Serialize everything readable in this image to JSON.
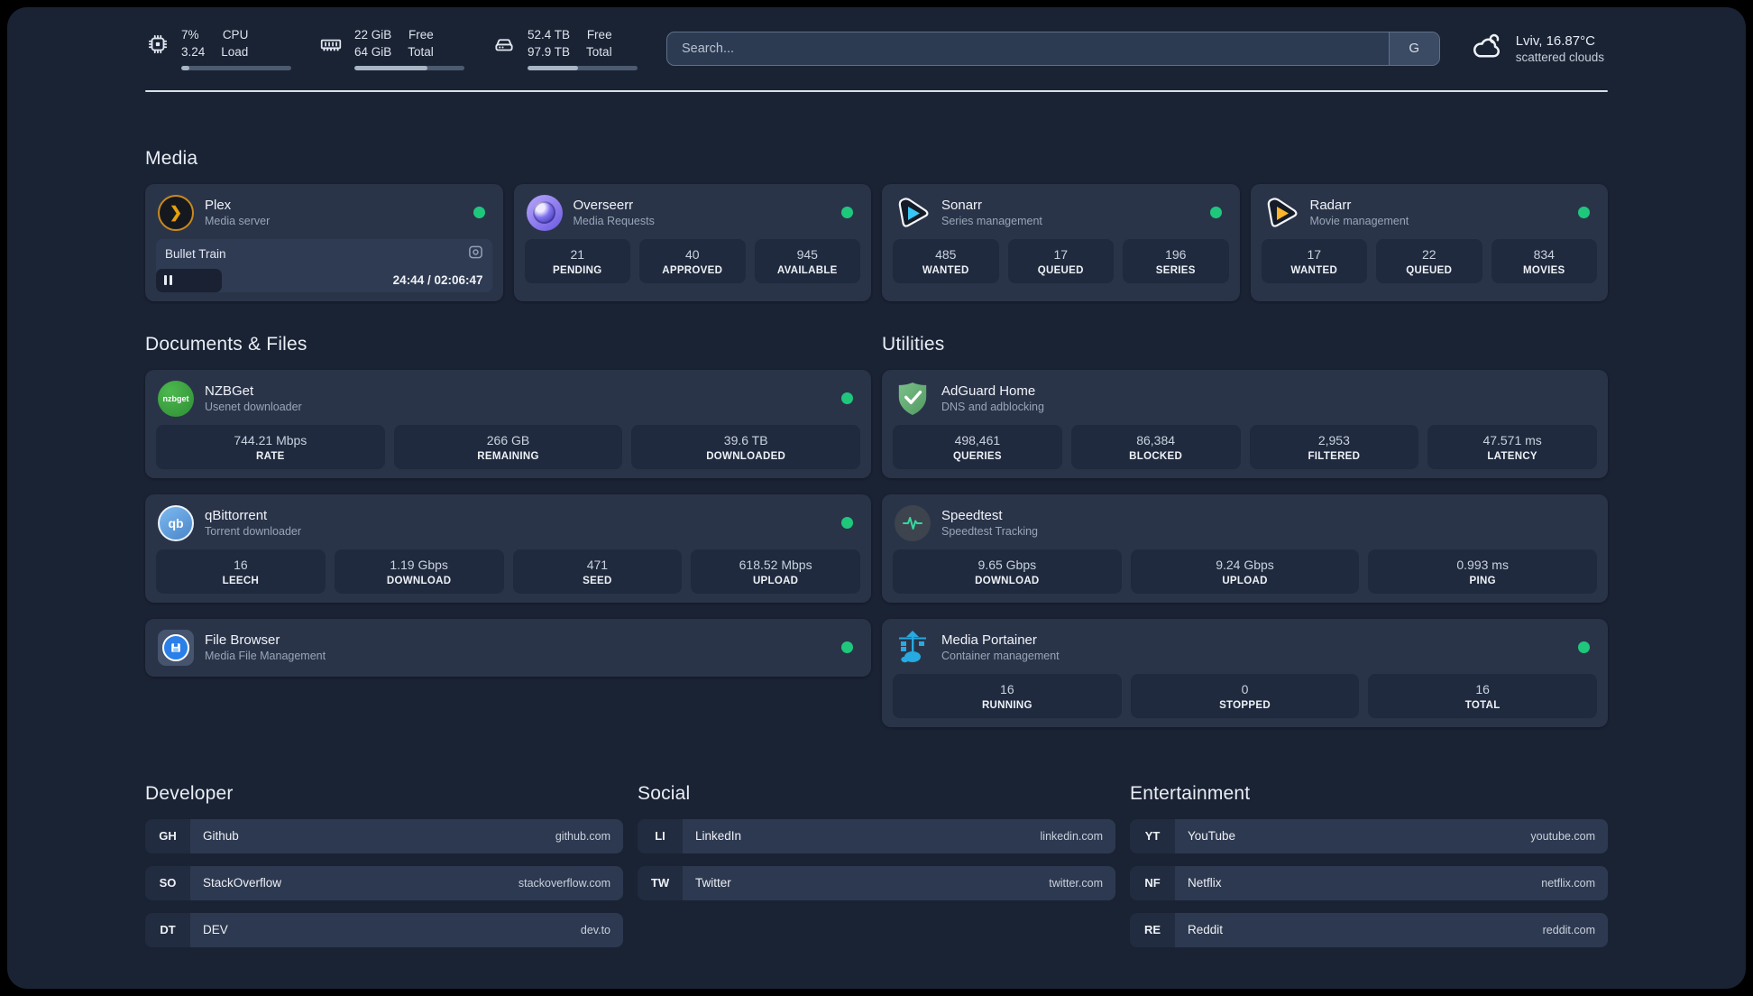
{
  "header": {
    "system_stats": [
      {
        "icon": "cpu-icon",
        "col1": [
          "7%",
          "3.24"
        ],
        "col2": [
          "CPU",
          "Load"
        ],
        "progress": 7
      },
      {
        "icon": "memory-icon",
        "col1": [
          "22 GiB",
          "64 GiB"
        ],
        "col2": [
          "Free",
          "Total"
        ],
        "progress": 66
      },
      {
        "icon": "disk-icon",
        "col1": [
          "52.4 TB",
          "97.9 TB"
        ],
        "col2": [
          "Free",
          "Total"
        ],
        "progress": 46
      }
    ],
    "search": {
      "placeholder": "Search...",
      "engine_button": "G"
    },
    "weather": {
      "location": "Lviv, 16.87°C",
      "condition": "scattered clouds"
    }
  },
  "sections": {
    "media": {
      "title": "Media",
      "plex": {
        "title": "Plex",
        "subtitle": "Media server",
        "status": "online",
        "now_playing": {
          "name": "Bullet Train",
          "time_display": "24:44 / 02:06:47",
          "progress_percent": 19.5
        }
      },
      "overseerr": {
        "title": "Overseerr",
        "subtitle": "Media Requests",
        "status": "online",
        "stats": [
          {
            "value": "21",
            "label": "PENDING"
          },
          {
            "value": "40",
            "label": "APPROVED"
          },
          {
            "value": "945",
            "label": "AVAILABLE"
          }
        ]
      },
      "sonarr": {
        "title": "Sonarr",
        "subtitle": "Series management",
        "status": "online",
        "stats": [
          {
            "value": "485",
            "label": "WANTED"
          },
          {
            "value": "17",
            "label": "QUEUED"
          },
          {
            "value": "196",
            "label": "SERIES"
          }
        ]
      },
      "radarr": {
        "title": "Radarr",
        "subtitle": "Movie management",
        "status": "online",
        "stats": [
          {
            "value": "17",
            "label": "WANTED"
          },
          {
            "value": "22",
            "label": "QUEUED"
          },
          {
            "value": "834",
            "label": "MOVIES"
          }
        ]
      }
    },
    "documents": {
      "title": "Documents & Files",
      "nzbget": {
        "title": "NZBGet",
        "subtitle": "Usenet downloader",
        "status": "online",
        "icon_text": "nzbget",
        "stats": [
          {
            "value": "744.21 Mbps",
            "label": "RATE"
          },
          {
            "value": "266 GB",
            "label": "REMAINING"
          },
          {
            "value": "39.6 TB",
            "label": "DOWNLOADED"
          }
        ]
      },
      "qbittorrent": {
        "title": "qBittorrent",
        "subtitle": "Torrent downloader",
        "status": "online",
        "icon_text": "qb",
        "stats": [
          {
            "value": "16",
            "label": "LEECH"
          },
          {
            "value": "1.19 Gbps",
            "label": "DOWNLOAD"
          },
          {
            "value": "471",
            "label": "SEED"
          },
          {
            "value": "618.52 Mbps",
            "label": "UPLOAD"
          }
        ]
      },
      "filebrowser": {
        "title": "File Browser",
        "subtitle": "Media File Management",
        "status": "online"
      }
    },
    "utilities": {
      "title": "Utilities",
      "adguard": {
        "title": "AdGuard Home",
        "subtitle": "DNS and adblocking",
        "stats": [
          {
            "value": "498,461",
            "label": "QUERIES"
          },
          {
            "value": "86,384",
            "label": "BLOCKED"
          },
          {
            "value": "2,953",
            "label": "FILTERED"
          },
          {
            "value": "47.571 ms",
            "label": "LATENCY"
          }
        ]
      },
      "speedtest": {
        "title": "Speedtest",
        "subtitle": "Speedtest Tracking",
        "stats": [
          {
            "value": "9.65 Gbps",
            "label": "DOWNLOAD"
          },
          {
            "value": "9.24 Gbps",
            "label": "UPLOAD"
          },
          {
            "value": "0.993 ms",
            "label": "PING"
          }
        ]
      },
      "portainer": {
        "title": "Media Portainer",
        "subtitle": "Container management",
        "status": "online",
        "stats": [
          {
            "value": "16",
            "label": "RUNNING"
          },
          {
            "value": "0",
            "label": "STOPPED"
          },
          {
            "value": "16",
            "label": "TOTAL"
          }
        ]
      }
    },
    "bookmarks": [
      {
        "title": "Developer",
        "links": [
          {
            "abbr": "GH",
            "name": "Github",
            "url": "github.com"
          },
          {
            "abbr": "SO",
            "name": "StackOverflow",
            "url": "stackoverflow.com"
          },
          {
            "abbr": "DT",
            "name": "DEV",
            "url": "dev.to"
          }
        ]
      },
      {
        "title": "Social",
        "links": [
          {
            "abbr": "LI",
            "name": "LinkedIn",
            "url": "linkedin.com"
          },
          {
            "abbr": "TW",
            "name": "Twitter",
            "url": "twitter.com"
          }
        ]
      },
      {
        "title": "Entertainment",
        "links": [
          {
            "abbr": "YT",
            "name": "YouTube",
            "url": "youtube.com"
          },
          {
            "abbr": "NF",
            "name": "Netflix",
            "url": "netflix.com"
          },
          {
            "abbr": "RE",
            "name": "Reddit",
            "url": "reddit.com"
          }
        ]
      }
    ]
  },
  "colors": {
    "background": "#1a2334",
    "card": "#2a3449",
    "status_online": "#1fc77c",
    "plex_accent": "#e5a00d",
    "sonarr_accent": "#38c6f4",
    "radarr_accent": "#fcb42d"
  },
  "plex_icon_glyph": "❯"
}
